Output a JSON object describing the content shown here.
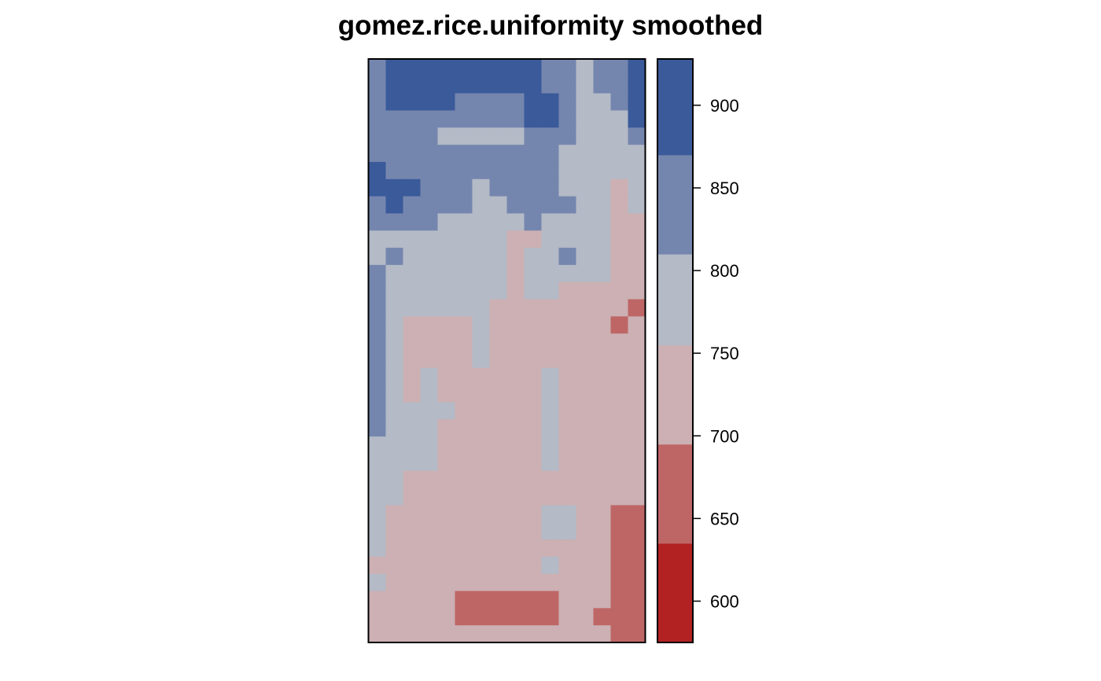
{
  "chart_data": {
    "type": "heatmap",
    "title": "gomez.rice.uniformity smoothed",
    "xlabel": "",
    "ylabel": "",
    "n_cols": 16,
    "n_rows": 34,
    "row_order": "top-to-bottom",
    "class_breaks": [
      575,
      635,
      695,
      755,
      810,
      870,
      928
    ],
    "class_colors": [
      "#B22222",
      "#BE6666",
      "#CCB0B3",
      "#B4BAC6",
      "#7586AE",
      "#3A5A9A"
    ],
    "colorbar_ticks": [
      600,
      650,
      700,
      750,
      800,
      850,
      900
    ],
    "grid": [
      [
        4,
        5,
        5,
        5,
        5,
        5,
        5,
        5,
        5,
        5,
        4,
        4,
        3,
        4,
        4,
        5
      ],
      [
        4,
        5,
        5,
        5,
        5,
        5,
        5,
        5,
        5,
        5,
        4,
        4,
        3,
        4,
        4,
        5
      ],
      [
        4,
        5,
        5,
        5,
        5,
        4,
        4,
        4,
        4,
        5,
        5,
        4,
        3,
        3,
        4,
        5
      ],
      [
        4,
        4,
        4,
        4,
        4,
        4,
        4,
        4,
        4,
        5,
        5,
        4,
        3,
        3,
        3,
        5
      ],
      [
        4,
        4,
        4,
        4,
        3,
        3,
        3,
        3,
        3,
        4,
        4,
        4,
        3,
        3,
        3,
        4
      ],
      [
        4,
        4,
        4,
        4,
        4,
        4,
        4,
        4,
        4,
        4,
        4,
        3,
        3,
        3,
        3,
        3
      ],
      [
        5,
        4,
        4,
        4,
        4,
        4,
        4,
        4,
        4,
        4,
        4,
        3,
        3,
        3,
        3,
        3
      ],
      [
        5,
        5,
        5,
        4,
        4,
        4,
        3,
        4,
        4,
        4,
        4,
        3,
        3,
        3,
        2,
        3
      ],
      [
        4,
        5,
        4,
        4,
        4,
        4,
        3,
        3,
        4,
        4,
        4,
        4,
        3,
        3,
        2,
        3
      ],
      [
        4,
        4,
        4,
        4,
        3,
        3,
        3,
        3,
        3,
        4,
        3,
        3,
        3,
        3,
        2,
        2
      ],
      [
        3,
        3,
        3,
        3,
        3,
        3,
        3,
        3,
        2,
        2,
        3,
        3,
        3,
        3,
        2,
        2
      ],
      [
        3,
        4,
        3,
        3,
        3,
        3,
        3,
        3,
        2,
        3,
        3,
        4,
        3,
        3,
        2,
        2
      ],
      [
        4,
        3,
        3,
        3,
        3,
        3,
        3,
        3,
        2,
        3,
        3,
        3,
        3,
        3,
        2,
        2
      ],
      [
        4,
        3,
        3,
        3,
        3,
        3,
        3,
        3,
        2,
        3,
        3,
        2,
        2,
        2,
        2,
        2
      ],
      [
        4,
        3,
        3,
        3,
        3,
        3,
        3,
        2,
        2,
        2,
        2,
        2,
        2,
        2,
        2,
        1
      ],
      [
        4,
        3,
        2,
        2,
        2,
        2,
        3,
        2,
        2,
        2,
        2,
        2,
        2,
        2,
        1,
        2
      ],
      [
        4,
        3,
        2,
        2,
        2,
        2,
        3,
        2,
        2,
        2,
        2,
        2,
        2,
        2,
        2,
        2
      ],
      [
        4,
        3,
        2,
        2,
        2,
        2,
        3,
        2,
        2,
        2,
        2,
        2,
        2,
        2,
        2,
        2
      ],
      [
        4,
        3,
        2,
        3,
        2,
        2,
        2,
        2,
        2,
        2,
        3,
        2,
        2,
        2,
        2,
        2
      ],
      [
        4,
        3,
        2,
        3,
        2,
        2,
        2,
        2,
        2,
        2,
        3,
        2,
        2,
        2,
        2,
        2
      ],
      [
        4,
        3,
        3,
        3,
        3,
        2,
        2,
        2,
        2,
        2,
        3,
        2,
        2,
        2,
        2,
        2
      ],
      [
        4,
        3,
        3,
        3,
        2,
        2,
        2,
        2,
        2,
        2,
        3,
        2,
        2,
        2,
        2,
        2
      ],
      [
        3,
        3,
        3,
        3,
        2,
        2,
        2,
        2,
        2,
        2,
        3,
        2,
        2,
        2,
        2,
        2
      ],
      [
        3,
        3,
        3,
        3,
        2,
        2,
        2,
        2,
        2,
        2,
        3,
        2,
        2,
        2,
        2,
        2
      ],
      [
        3,
        3,
        2,
        2,
        2,
        2,
        2,
        2,
        2,
        2,
        2,
        2,
        2,
        2,
        2,
        2
      ],
      [
        3,
        3,
        2,
        2,
        2,
        2,
        2,
        2,
        2,
        2,
        2,
        2,
        2,
        2,
        2,
        2
      ],
      [
        3,
        2,
        2,
        2,
        2,
        2,
        2,
        2,
        2,
        2,
        3,
        3,
        2,
        2,
        1,
        1
      ],
      [
        3,
        2,
        2,
        2,
        2,
        2,
        2,
        2,
        2,
        2,
        3,
        3,
        2,
        2,
        1,
        1
      ],
      [
        3,
        2,
        2,
        2,
        2,
        2,
        2,
        2,
        2,
        2,
        2,
        2,
        2,
        2,
        1,
        1
      ],
      [
        2,
        2,
        2,
        2,
        2,
        2,
        2,
        2,
        2,
        2,
        3,
        2,
        2,
        2,
        1,
        1
      ],
      [
        3,
        2,
        2,
        2,
        2,
        2,
        2,
        2,
        2,
        2,
        2,
        2,
        2,
        2,
        1,
        1
      ],
      [
        2,
        2,
        2,
        2,
        2,
        1,
        1,
        1,
        1,
        1,
        1,
        2,
        2,
        2,
        1,
        1
      ],
      [
        2,
        2,
        2,
        2,
        2,
        1,
        1,
        1,
        1,
        1,
        1,
        2,
        2,
        1,
        1,
        1
      ],
      [
        2,
        2,
        2,
        2,
        2,
        2,
        2,
        2,
        2,
        2,
        2,
        2,
        2,
        2,
        1,
        1
      ]
    ]
  }
}
